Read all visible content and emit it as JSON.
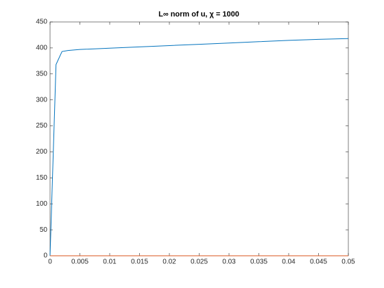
{
  "chart_data": {
    "type": "line",
    "title": "L∞ norm of u, χ = 1000",
    "x": [
      0,
      0.001,
      0.002,
      0.003,
      0.005,
      0.01,
      0.015,
      0.02,
      0.025,
      0.03,
      0.035,
      0.04,
      0.045,
      0.05
    ],
    "series": [
      {
        "color": "#0072bd",
        "values": [
          0,
          368,
          393,
          395,
          397,
          399.5,
          402,
          404.5,
          407,
          409.5,
          412,
          414.5,
          416.5,
          418
        ]
      },
      {
        "color": "#d95319",
        "values": [
          0,
          0,
          0,
          0,
          0,
          0,
          0,
          0,
          0,
          0,
          0,
          0,
          0,
          0
        ]
      }
    ],
    "xlim": [
      0,
      0.05
    ],
    "xticks": [
      0,
      0.005,
      0.01,
      0.015,
      0.02,
      0.025,
      0.03,
      0.035,
      0.04,
      0.045,
      0.05
    ],
    "ylim": [
      0,
      450
    ],
    "yticks": [
      0,
      50,
      100,
      150,
      200,
      250,
      300,
      350,
      400,
      450
    ],
    "grid": false
  }
}
